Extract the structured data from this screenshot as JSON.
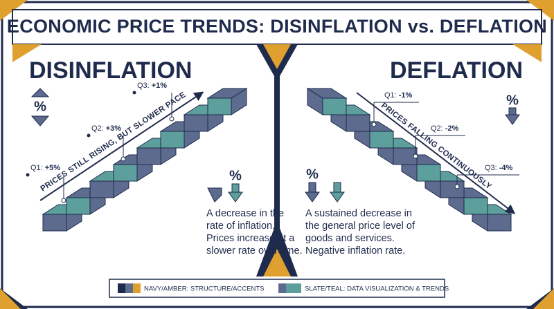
{
  "title": "ECONOMIC PRICE TRENDS: DISINFLATION vs. DEFLATION",
  "left": {
    "heading": "DISINFLATION",
    "arrow_label": "PRICES STILL RISING, BUT SLOWER PACE",
    "callouts": [
      {
        "quarter": "Q1:",
        "value": "+5%"
      },
      {
        "quarter": "Q2:",
        "value": "+3%"
      },
      {
        "quarter": "Q3:",
        "value": "+1%"
      }
    ],
    "icon_top": "%",
    "icon_bottom": "%",
    "description": [
      "A decrease in the",
      "rate of inflation.",
      "Prices increase at a",
      "slower rate over time."
    ]
  },
  "right": {
    "heading": "DEFLATION",
    "arrow_label": "PRICES FALLING CONTINUOUSLY",
    "callouts": [
      {
        "quarter": "Q1:",
        "value": "-1%"
      },
      {
        "quarter": "Q2:",
        "value": "-2%"
      },
      {
        "quarter": "Q3:",
        "value": "-4%"
      }
    ],
    "icon_top": "%",
    "icon_bottom": "%",
    "description": [
      "A sustained decrease in",
      "the general price level of",
      "goods and services.",
      "Negative inflation rate."
    ]
  },
  "legend": [
    {
      "label": "NAVY/AMBER: STRUCTURE/ACCENTS"
    },
    {
      "label": "SLATE/TEAL: DATA VISUALIZATION & TRENDS"
    }
  ]
}
